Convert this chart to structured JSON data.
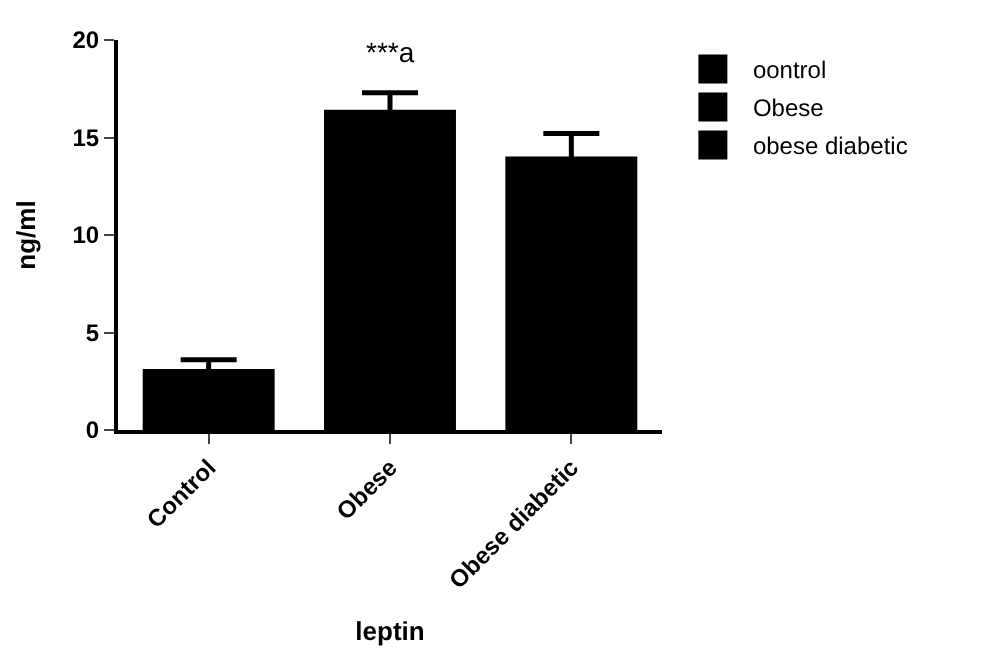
{
  "chart_data": {
    "type": "bar",
    "xlabel": "leptin",
    "ylabel": "ng/ml",
    "categories": [
      "Control",
      "Obese",
      "Obese diabetic"
    ],
    "series": [
      {
        "name": "oontrol",
        "color": "#000000",
        "values": [
          3.0,
          null,
          null
        ],
        "errors": [
          0.6,
          null,
          null
        ]
      },
      {
        "name": "Obese",
        "color": "#000000",
        "values": [
          null,
          16.3,
          null
        ],
        "errors": [
          null,
          1.0,
          null
        ]
      },
      {
        "name": "obese diabetic",
        "color": "#000000",
        "values": [
          null,
          null,
          13.9
        ],
        "errors": [
          null,
          null,
          1.3
        ]
      }
    ],
    "annotations": [
      "***a"
    ],
    "ylim": [
      0,
      20
    ],
    "yticks": [
      0,
      5,
      10,
      15,
      20
    ],
    "grid": false,
    "legend": "top right"
  }
}
